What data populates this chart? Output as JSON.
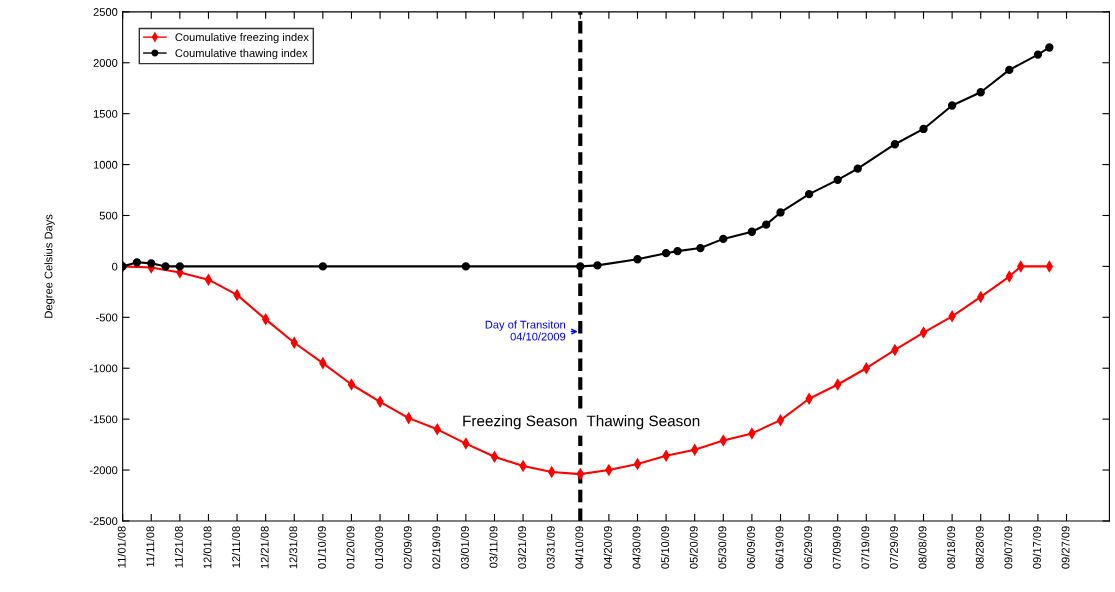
{
  "chart_data": {
    "type": "line",
    "ylabel": "Degree Celsius Days",
    "legend": "top left",
    "grid": false,
    "xlim": [
      "2008-11-01",
      "2009-10-12"
    ],
    "xticks": [
      {
        "value": "2008-11-01",
        "label": "11/01/08"
      },
      {
        "value": "2008-11-11",
        "label": "11/11/08"
      },
      {
        "value": "2008-11-21",
        "label": "11/21/08"
      },
      {
        "value": "2008-12-01",
        "label": "12/01/08"
      },
      {
        "value": "2008-12-11",
        "label": "12/11/08"
      },
      {
        "value": "2008-12-21",
        "label": "12/21/08"
      },
      {
        "value": "2008-12-31",
        "label": "12/31/08"
      },
      {
        "value": "2009-01-10",
        "label": "01/10/09"
      },
      {
        "value": "2009-01-20",
        "label": "01/20/09"
      },
      {
        "value": "2009-01-30",
        "label": "01/30/09"
      },
      {
        "value": "2009-02-09",
        "label": "02/09/09"
      },
      {
        "value": "2009-02-19",
        "label": "02/19/09"
      },
      {
        "value": "2009-03-01",
        "label": "03/01/09"
      },
      {
        "value": "2009-03-11",
        "label": "03/11/09"
      },
      {
        "value": "2009-03-21",
        "label": "03/21/09"
      },
      {
        "value": "2009-03-31",
        "label": "03/31/09"
      },
      {
        "value": "2009-04-10",
        "label": "04/10/09"
      },
      {
        "value": "2009-04-20",
        "label": "04/20/09"
      },
      {
        "value": "2009-04-30",
        "label": "04/30/09"
      },
      {
        "value": "2009-05-10",
        "label": "05/10/09"
      },
      {
        "value": "2009-05-20",
        "label": "05/20/09"
      },
      {
        "value": "2009-05-30",
        "label": "05/30/09"
      },
      {
        "value": "2009-06-09",
        "label": "06/09/09"
      },
      {
        "value": "2009-06-19",
        "label": "06/19/09"
      },
      {
        "value": "2009-06-29",
        "label": "06/29/09"
      },
      {
        "value": "2009-07-09",
        "label": "07/09/09"
      },
      {
        "value": "2009-07-19",
        "label": "07/19/09"
      },
      {
        "value": "2009-07-29",
        "label": "07/29/09"
      },
      {
        "value": "2009-08-08",
        "label": "08/08/09"
      },
      {
        "value": "2009-08-18",
        "label": "08/18/09"
      },
      {
        "value": "2009-08-28",
        "label": "08/28/09"
      },
      {
        "value": "2009-09-07",
        "label": "09/07/09"
      },
      {
        "value": "2009-09-17",
        "label": "09/17/09"
      },
      {
        "value": "2009-09-27",
        "label": "09/27/09"
      }
    ],
    "ylim": [
      -2500,
      2500
    ],
    "yticks": [
      -2500,
      -2000,
      -1500,
      -1000,
      -500,
      0,
      500,
      1000,
      1500,
      2000,
      2500
    ],
    "series": [
      {
        "name": "Coumulative freezing index",
        "color": "#ff0000",
        "marker": "diamond",
        "x": [
          "2008-11-01",
          "2008-11-11",
          "2008-11-21",
          "2008-12-01",
          "2008-12-11",
          "2008-12-21",
          "2008-12-31",
          "2009-01-10",
          "2009-01-20",
          "2009-01-30",
          "2009-02-09",
          "2009-02-19",
          "2009-03-01",
          "2009-03-11",
          "2009-03-21",
          "2009-03-31",
          "2009-04-10",
          "2009-04-20",
          "2009-04-30",
          "2009-05-10",
          "2009-05-20",
          "2009-05-30",
          "2009-06-09",
          "2009-06-19",
          "2009-06-29",
          "2009-07-09",
          "2009-07-19",
          "2009-07-29",
          "2009-08-08",
          "2009-08-18",
          "2009-08-28",
          "2009-09-07",
          "2009-09-11",
          "2009-09-21"
        ],
        "values": [
          0,
          -10,
          -60,
          -130,
          -280,
          -520,
          -750,
          -950,
          -1160,
          -1330,
          -1490,
          -1600,
          -1740,
          -1870,
          -1960,
          -2020,
          -2040,
          -2000,
          -1940,
          -1860,
          -1800,
          -1710,
          -1640,
          -1510,
          -1300,
          -1160,
          -1000,
          -820,
          -650,
          -490,
          -300,
          -100,
          0,
          0
        ]
      },
      {
        "name": "Coumulative thawing index",
        "color": "#000000",
        "marker": "circle",
        "x": [
          "2008-11-01",
          "2008-11-06",
          "2008-11-11",
          "2008-11-16",
          "2008-11-21",
          "2009-01-10",
          "2009-03-01",
          "2009-04-10",
          "2009-04-16",
          "2009-04-30",
          "2009-05-10",
          "2009-05-14",
          "2009-05-22",
          "2009-05-30",
          "2009-06-09",
          "2009-06-14",
          "2009-06-19",
          "2009-06-29",
          "2009-07-09",
          "2009-07-16",
          "2009-07-29",
          "2009-08-08",
          "2009-08-18",
          "2009-08-28",
          "2009-09-07",
          "2009-09-17",
          "2009-09-21"
        ],
        "values": [
          0,
          40,
          30,
          0,
          0,
          0,
          0,
          0,
          10,
          70,
          130,
          150,
          180,
          270,
          340,
          410,
          530,
          710,
          850,
          960,
          1200,
          1350,
          1580,
          1710,
          1930,
          2080,
          2150
        ]
      }
    ],
    "ref_lines": [
      {
        "axis": "x",
        "value": "2009-04-10",
        "color": "#000000",
        "line_style": "dashed"
      }
    ],
    "annotations": [
      "Day of Transiton\n04/10/2009",
      "Freezing Season",
      "Thawing Season"
    ]
  }
}
